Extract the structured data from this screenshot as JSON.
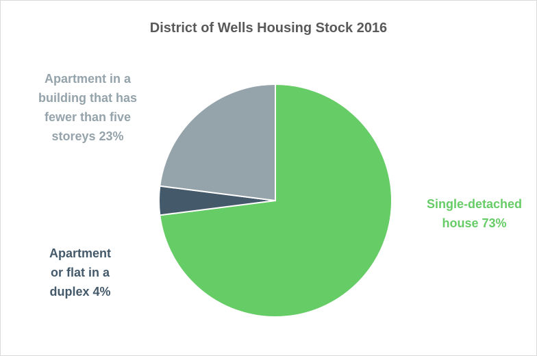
{
  "chart_data": {
    "type": "pie",
    "title": "District of Wells Housing Stock 2016",
    "categories": [
      "Single-detached house",
      "Apartment or flat in a duplex",
      "Apartment in a building that has fewer than five storeys"
    ],
    "values": [
      73,
      4,
      23
    ],
    "value_labels": [
      "73%",
      "4%",
      "23%"
    ],
    "colors": [
      "#66cc66",
      "#44596a",
      "#95a3ab"
    ]
  }
}
